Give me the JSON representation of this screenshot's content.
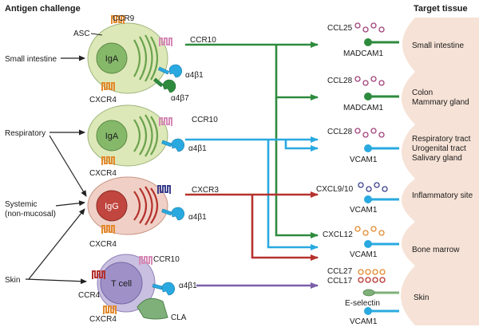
{
  "headers": {
    "antigen_challenge": "Antigen challenge",
    "target_tissue": "Target tissue"
  },
  "sources": {
    "small_intestine": "Small intestine",
    "respiratory": "Respiratory",
    "systemic_line1": "Systemic",
    "systemic_line2": "(non-mucosal)",
    "skin": "Skin"
  },
  "cells": {
    "asc": "ASC",
    "iga": "IgA",
    "igg": "IgG",
    "tcell": "T cell",
    "ccr9": "CCR9",
    "ccr10": "CCR10",
    "cxcr3": "CXCR3",
    "cxcr4": "CXCR4",
    "ccr4": "CCR4",
    "cla": "CLA",
    "a4b1": "α4β1",
    "a4b7": "α4β7"
  },
  "targets": {
    "small_intestine": {
      "chemokine": "CCL25",
      "receptor": "MADCAM1",
      "tissue": "Small intestine"
    },
    "colon": {
      "chemokine": "CCL28",
      "receptor": "MADCAM1",
      "tissue_line1": "Colon",
      "tissue_line2": "Mammary gland"
    },
    "respiratory": {
      "chemokine": "CCL28",
      "receptor": "VCAM1",
      "tissue_line1": "Respiratory tract",
      "tissue_line2": "Urogenital tract",
      "tissue_line3": "Salivary gland"
    },
    "inflammatory": {
      "chemokine": "CXCL9/10",
      "receptor": "VCAM1",
      "tissue": "Inflammatory site"
    },
    "bone_marrow": {
      "chemokine": "CXCL12",
      "receptor": "VCAM1",
      "tissue": "Bone marrow"
    },
    "skin": {
      "chemokine1": "CCL27",
      "chemokine2": "CCL17",
      "receptor1": "E-selectin",
      "receptor2": "VCAM1",
      "tissue": "Skin"
    }
  },
  "colors": {
    "green_arrow": "#2e8b3e",
    "blue_arrow": "#29a9e0",
    "red_arrow": "#b5322e",
    "purple_arrow": "#7b5fa8",
    "tissue_fill": "#f6e2d6",
    "cell_green": "#dde8b8",
    "nucleus_green": "#86b86a",
    "cell_red": "#f0d0c6",
    "nucleus_red": "#c0463f",
    "cell_purple": "#c9bfe0",
    "nucleus_purple": "#9f91c8"
  }
}
